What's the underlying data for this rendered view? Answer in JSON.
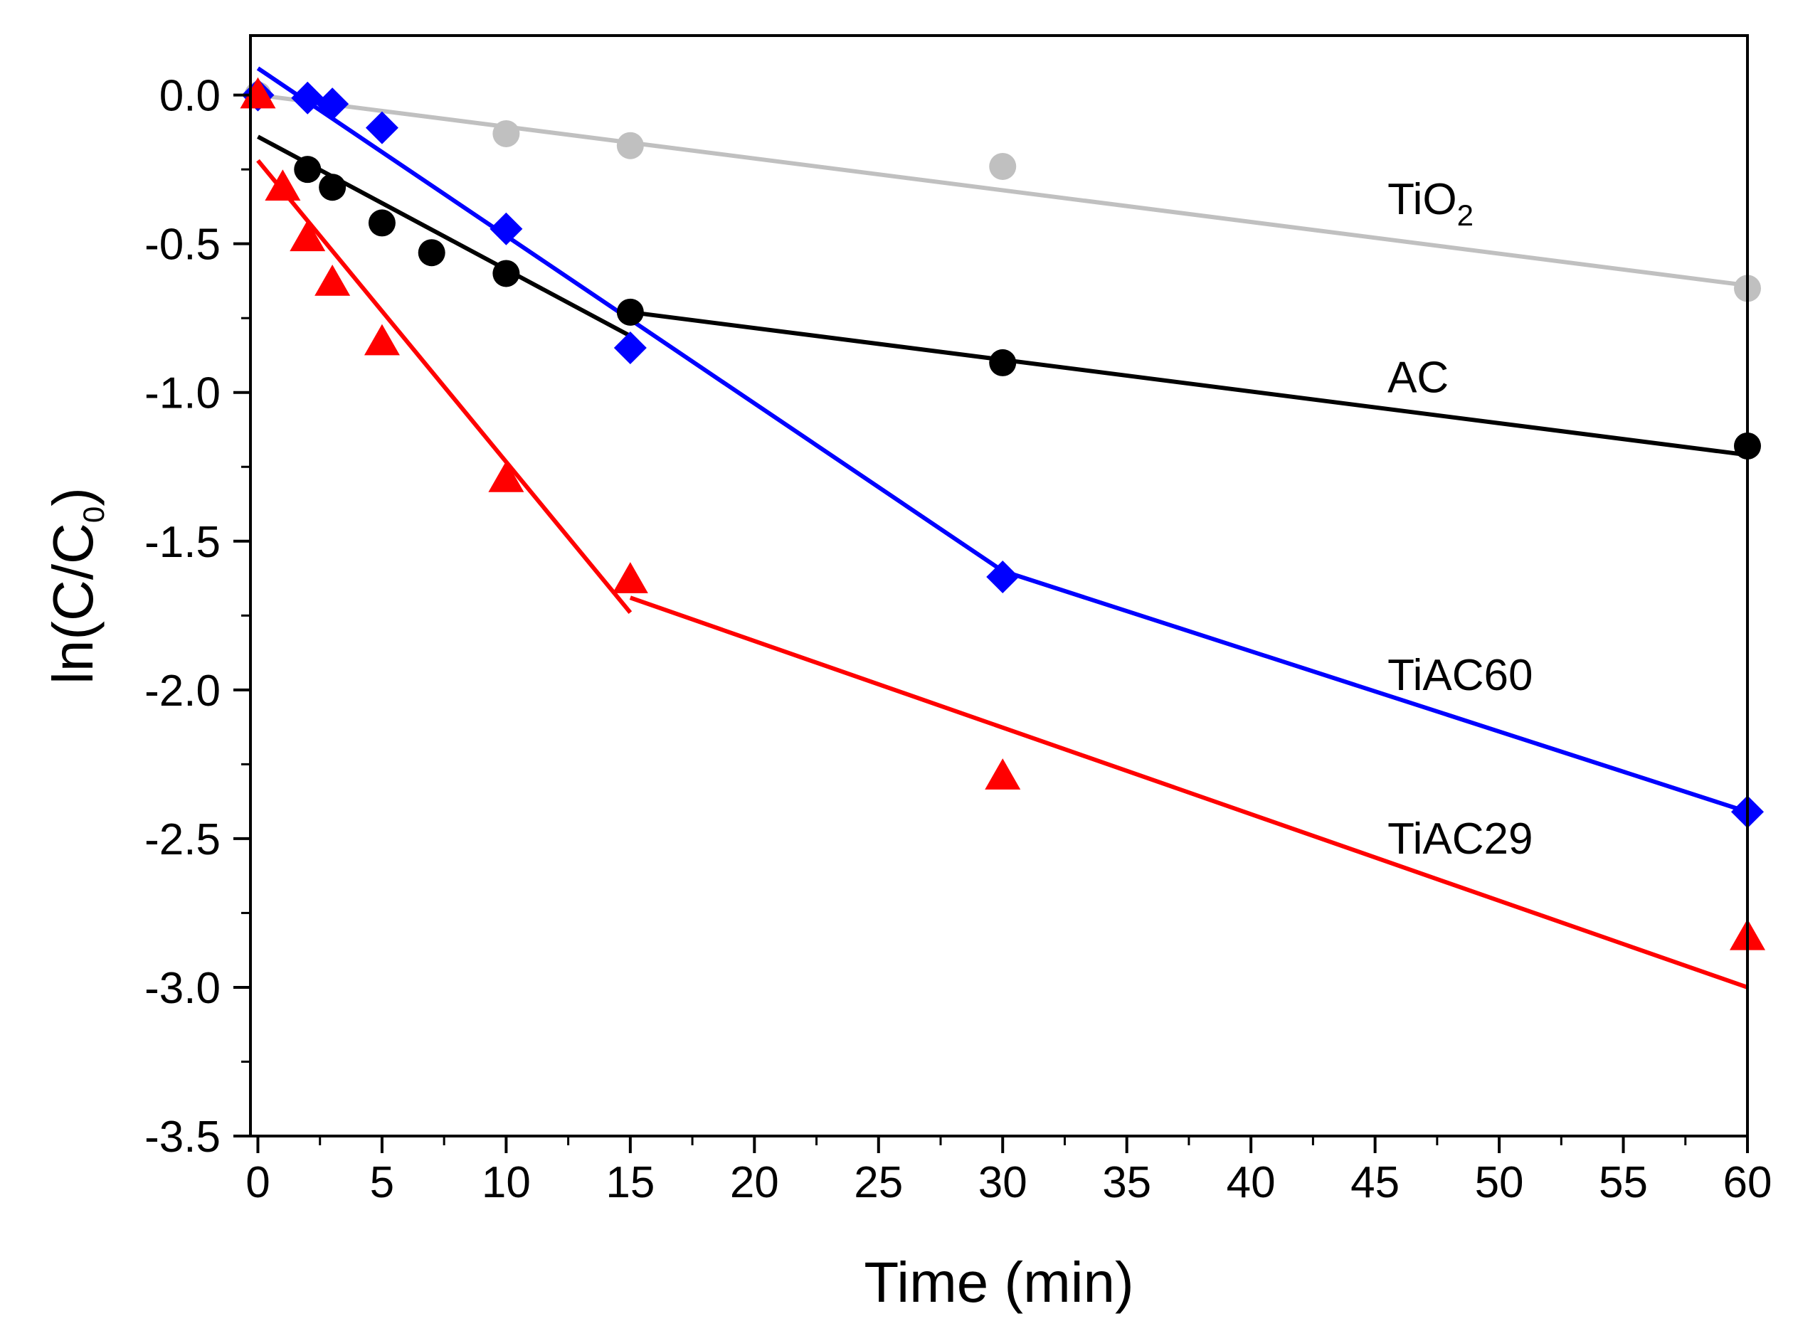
{
  "chart_data": {
    "type": "scatter",
    "xlabel": "Time (min)",
    "ylabel_parts": {
      "main": "ln(C/C",
      "sub": "0",
      "close": ")"
    },
    "xlim": [
      -0.3,
      60
    ],
    "ylim": [
      -3.5,
      0.2
    ],
    "xticks": [
      "0",
      "5",
      "10",
      "15",
      "20",
      "25",
      "30",
      "35",
      "40",
      "45",
      "50",
      "55",
      "60"
    ],
    "xtick_values": [
      0,
      5,
      10,
      15,
      20,
      25,
      30,
      35,
      40,
      45,
      50,
      55,
      60
    ],
    "yticks": [
      "0.0",
      "-0.5",
      "-1.0",
      "-1.5",
      "-2.0",
      "-2.5",
      "-3.0",
      "-3.5"
    ],
    "ytick_values": [
      0.0,
      -0.5,
      -1.0,
      -1.5,
      -2.0,
      -2.5,
      -3.0,
      -3.5
    ],
    "series": [
      {
        "name": "TiO2",
        "label_main": "TiO",
        "label_sub": "2",
        "label_at": [
          45.5,
          -0.4
        ],
        "color": "#c0c0c0",
        "marker": "circle",
        "x": [
          0,
          10,
          15,
          30,
          60
        ],
        "y": [
          0.0,
          -0.13,
          -0.17,
          -0.24,
          -0.65
        ],
        "fits": [
          {
            "x": [
              0,
              60
            ],
            "y": [
              0.0,
              -0.64
            ]
          }
        ]
      },
      {
        "name": "AC",
        "label_main": "AC",
        "label_sub": "",
        "label_at": [
          45.5,
          -1.0
        ],
        "color": "#000000",
        "marker": "circle",
        "x": [
          2,
          3,
          5,
          7,
          10,
          15,
          30,
          60
        ],
        "y": [
          -0.25,
          -0.31,
          -0.43,
          -0.53,
          -0.6,
          -0.73,
          -0.9,
          -1.18
        ],
        "fits": [
          {
            "x": [
              0,
              15
            ],
            "y": [
              -0.14,
              -0.81
            ]
          },
          {
            "x": [
              15,
              60
            ],
            "y": [
              -0.73,
              -1.21
            ]
          }
        ]
      },
      {
        "name": "TiAC60",
        "label_main": "TiAC60",
        "label_sub": "",
        "label_at": [
          45.5,
          -2.0
        ],
        "color": "#0000ff",
        "marker": "diamond",
        "x": [
          0,
          2,
          3,
          5,
          10,
          15,
          30,
          60
        ],
        "y": [
          0.0,
          -0.01,
          -0.03,
          -0.11,
          -0.45,
          -0.85,
          -1.62,
          -2.41
        ],
        "fits": [
          {
            "x": [
              0,
              30
            ],
            "y": [
              0.09,
              -1.6
            ]
          },
          {
            "x": [
              30,
              60
            ],
            "y": [
              -1.6,
              -2.41
            ]
          }
        ]
      },
      {
        "name": "TiAC29",
        "label_main": "TiAC29",
        "label_sub": "",
        "label_at": [
          45.5,
          -2.55
        ],
        "color": "#ff0000",
        "marker": "triangle",
        "x": [
          0,
          1,
          2,
          3,
          5,
          10,
          15,
          30,
          60
        ],
        "y": [
          0.0,
          -0.31,
          -0.48,
          -0.63,
          -0.83,
          -1.29,
          -1.63,
          -2.29,
          -2.83
        ],
        "fits": [
          {
            "x": [
              0,
              15
            ],
            "y": [
              -0.22,
              -1.74
            ]
          },
          {
            "x": [
              15,
              60
            ],
            "y": [
              -1.69,
              -3.0
            ]
          }
        ]
      }
    ]
  }
}
